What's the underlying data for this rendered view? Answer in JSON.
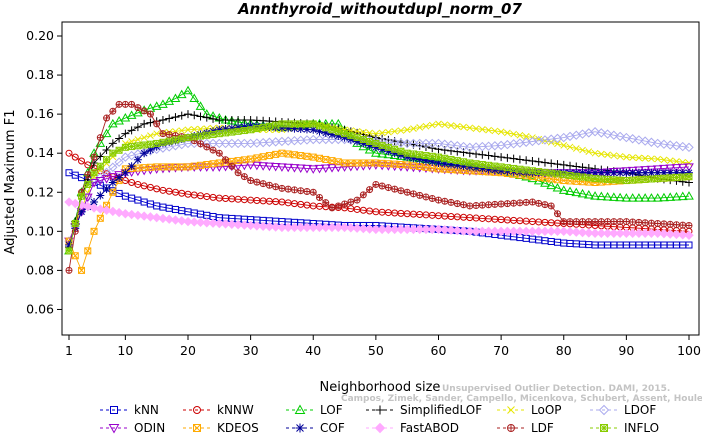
{
  "chart_data": {
    "type": "line",
    "title": "Annthyroid_withoutdupl_norm_07",
    "xlabel": "Neighborhood size",
    "ylabel": "Adjusted Maximum F1",
    "xlim": [
      1,
      100
    ],
    "ylim": [
      0.05,
      0.2
    ],
    "x_ticks": [
      1,
      10,
      20,
      30,
      40,
      50,
      60,
      70,
      80,
      90,
      100
    ],
    "y_ticks": [
      0.06,
      0.08,
      0.1,
      0.12,
      0.14,
      0.16,
      0.18,
      0.2
    ],
    "y_tick_labels": [
      "0.06",
      "0.08",
      "0.10",
      "0.12",
      "0.14",
      "0.16",
      "0.18",
      "0.20"
    ],
    "grid": false,
    "legend_position": "bottom",
    "series": [
      {
        "name": "kNN",
        "color": "#0000cc",
        "marker": "square",
        "points": [
          [
            1,
            0.13
          ],
          [
            5,
            0.125
          ],
          [
            10,
            0.118
          ],
          [
            15,
            0.113
          ],
          [
            20,
            0.11
          ],
          [
            25,
            0.107
          ],
          [
            30,
            0.106
          ],
          [
            35,
            0.105
          ],
          [
            40,
            0.104
          ],
          [
            45,
            0.103
          ],
          [
            50,
            0.103
          ],
          [
            55,
            0.102
          ],
          [
            60,
            0.101
          ],
          [
            65,
            0.1
          ],
          [
            70,
            0.098
          ],
          [
            75,
            0.096
          ],
          [
            80,
            0.094
          ],
          [
            85,
            0.093
          ],
          [
            90,
            0.093
          ],
          [
            95,
            0.093
          ],
          [
            100,
            0.093
          ]
        ]
      },
      {
        "name": "kNNW",
        "color": "#cc0000",
        "marker": "circle",
        "points": [
          [
            1,
            0.14
          ],
          [
            4,
            0.134
          ],
          [
            8,
            0.128
          ],
          [
            12,
            0.124
          ],
          [
            16,
            0.121
          ],
          [
            20,
            0.119
          ],
          [
            25,
            0.117
          ],
          [
            30,
            0.116
          ],
          [
            35,
            0.115
          ],
          [
            40,
            0.113
          ],
          [
            45,
            0.112
          ],
          [
            50,
            0.11
          ],
          [
            55,
            0.109
          ],
          [
            60,
            0.108
          ],
          [
            65,
            0.107
          ],
          [
            70,
            0.106
          ],
          [
            75,
            0.105
          ],
          [
            80,
            0.104
          ],
          [
            85,
            0.103
          ],
          [
            90,
            0.102
          ],
          [
            95,
            0.101
          ],
          [
            100,
            0.1
          ]
        ]
      },
      {
        "name": "LOF",
        "color": "#00cc00",
        "marker": "triangle-up",
        "points": [
          [
            1,
            0.09
          ],
          [
            3,
            0.12
          ],
          [
            5,
            0.14
          ],
          [
            8,
            0.155
          ],
          [
            10,
            0.158
          ],
          [
            13,
            0.162
          ],
          [
            16,
            0.165
          ],
          [
            18,
            0.168
          ],
          [
            20,
            0.172
          ],
          [
            23,
            0.16
          ],
          [
            26,
            0.157
          ],
          [
            30,
            0.155
          ],
          [
            35,
            0.153
          ],
          [
            40,
            0.155
          ],
          [
            44,
            0.155
          ],
          [
            47,
            0.145
          ],
          [
            50,
            0.14
          ],
          [
            55,
            0.138
          ],
          [
            60,
            0.136
          ],
          [
            65,
            0.134
          ],
          [
            70,
            0.131
          ],
          [
            75,
            0.127
          ],
          [
            80,
            0.121
          ],
          [
            85,
            0.118
          ],
          [
            90,
            0.117
          ],
          [
            95,
            0.117
          ],
          [
            100,
            0.118
          ]
        ]
      },
      {
        "name": "SimplifiedLOF",
        "color": "#000000",
        "marker": "plus",
        "points": [
          [
            1,
            0.092
          ],
          [
            3,
            0.118
          ],
          [
            5,
            0.135
          ],
          [
            8,
            0.145
          ],
          [
            10,
            0.15
          ],
          [
            13,
            0.155
          ],
          [
            16,
            0.157
          ],
          [
            20,
            0.16
          ],
          [
            25,
            0.157
          ],
          [
            30,
            0.157
          ],
          [
            35,
            0.156
          ],
          [
            40,
            0.155
          ],
          [
            45,
            0.152
          ],
          [
            50,
            0.148
          ],
          [
            55,
            0.145
          ],
          [
            60,
            0.142
          ],
          [
            65,
            0.14
          ],
          [
            70,
            0.138
          ],
          [
            75,
            0.136
          ],
          [
            80,
            0.134
          ],
          [
            85,
            0.132
          ],
          [
            90,
            0.13
          ],
          [
            95,
            0.127
          ],
          [
            100,
            0.125
          ]
        ]
      },
      {
        "name": "LoOP",
        "color": "#e6e600",
        "marker": "cross",
        "points": [
          [
            1,
            0.095
          ],
          [
            5,
            0.128
          ],
          [
            10,
            0.145
          ],
          [
            15,
            0.15
          ],
          [
            20,
            0.152
          ],
          [
            25,
            0.153
          ],
          [
            30,
            0.152
          ],
          [
            35,
            0.152
          ],
          [
            40,
            0.155
          ],
          [
            45,
            0.152
          ],
          [
            50,
            0.15
          ],
          [
            55,
            0.152
          ],
          [
            60,
            0.155
          ],
          [
            65,
            0.153
          ],
          [
            70,
            0.151
          ],
          [
            75,
            0.148
          ],
          [
            80,
            0.144
          ],
          [
            85,
            0.14
          ],
          [
            90,
            0.138
          ],
          [
            95,
            0.137
          ],
          [
            100,
            0.135
          ]
        ]
      },
      {
        "name": "LDOF",
        "color": "#aaaaee",
        "marker": "diamond",
        "points": [
          [
            1,
            0.095
          ],
          [
            5,
            0.125
          ],
          [
            10,
            0.138
          ],
          [
            15,
            0.142
          ],
          [
            20,
            0.145
          ],
          [
            25,
            0.145
          ],
          [
            30,
            0.145
          ],
          [
            35,
            0.146
          ],
          [
            40,
            0.147
          ],
          [
            45,
            0.147
          ],
          [
            50,
            0.146
          ],
          [
            55,
            0.145
          ],
          [
            60,
            0.145
          ],
          [
            65,
            0.143
          ],
          [
            70,
            0.144
          ],
          [
            75,
            0.146
          ],
          [
            80,
            0.148
          ],
          [
            85,
            0.151
          ],
          [
            90,
            0.148
          ],
          [
            95,
            0.145
          ],
          [
            100,
            0.143
          ]
        ]
      },
      {
        "name": "ODIN",
        "color": "#9900cc",
        "marker": "triangle-down",
        "points": [
          [
            1,
            0.095
          ],
          [
            5,
            0.125
          ],
          [
            10,
            0.13
          ],
          [
            15,
            0.132
          ],
          [
            20,
            0.133
          ],
          [
            25,
            0.133
          ],
          [
            30,
            0.134
          ],
          [
            35,
            0.133
          ],
          [
            40,
            0.132
          ],
          [
            45,
            0.133
          ],
          [
            50,
            0.134
          ],
          [
            55,
            0.133
          ],
          [
            60,
            0.132
          ],
          [
            65,
            0.131
          ],
          [
            70,
            0.131
          ],
          [
            75,
            0.13
          ],
          [
            80,
            0.13
          ],
          [
            85,
            0.13
          ],
          [
            90,
            0.131
          ],
          [
            95,
            0.132
          ],
          [
            100,
            0.133
          ]
        ]
      },
      {
        "name": "KDEOS",
        "color": "#ffaa00",
        "marker": "square-x",
        "points": [
          [
            1,
            0.095
          ],
          [
            3,
            0.08
          ],
          [
            5,
            0.1
          ],
          [
            8,
            0.12
          ],
          [
            10,
            0.132
          ],
          [
            15,
            0.133
          ],
          [
            20,
            0.133
          ],
          [
            25,
            0.135
          ],
          [
            30,
            0.137
          ],
          [
            35,
            0.14
          ],
          [
            40,
            0.138
          ],
          [
            45,
            0.135
          ],
          [
            50,
            0.135
          ],
          [
            55,
            0.134
          ],
          [
            60,
            0.132
          ],
          [
            65,
            0.131
          ],
          [
            70,
            0.13
          ],
          [
            75,
            0.128
          ],
          [
            80,
            0.126
          ],
          [
            85,
            0.125
          ],
          [
            90,
            0.126
          ],
          [
            95,
            0.127
          ],
          [
            100,
            0.128
          ]
        ]
      },
      {
        "name": "COF",
        "color": "#000099",
        "marker": "asterisk",
        "points": [
          [
            1,
            0.093
          ],
          [
            3,
            0.11
          ],
          [
            5,
            0.115
          ],
          [
            8,
            0.125
          ],
          [
            10,
            0.13
          ],
          [
            13,
            0.14
          ],
          [
            16,
            0.145
          ],
          [
            20,
            0.148
          ],
          [
            25,
            0.152
          ],
          [
            30,
            0.154
          ],
          [
            35,
            0.153
          ],
          [
            40,
            0.152
          ],
          [
            45,
            0.148
          ],
          [
            50,
            0.143
          ],
          [
            55,
            0.138
          ],
          [
            60,
            0.135
          ],
          [
            65,
            0.133
          ],
          [
            70,
            0.131
          ],
          [
            75,
            0.13
          ],
          [
            80,
            0.13
          ],
          [
            85,
            0.13
          ],
          [
            90,
            0.13
          ],
          [
            95,
            0.13
          ],
          [
            100,
            0.13
          ]
        ]
      },
      {
        "name": "FastABOD",
        "color": "#ffaaff",
        "marker": "diamond-filled",
        "points": [
          [
            1,
            0.115
          ],
          [
            5,
            0.112
          ],
          [
            10,
            0.109
          ],
          [
            15,
            0.107
          ],
          [
            20,
            0.105
          ],
          [
            25,
            0.104
          ],
          [
            30,
            0.103
          ],
          [
            35,
            0.102
          ],
          [
            40,
            0.102
          ],
          [
            45,
            0.102
          ],
          [
            50,
            0.101
          ],
          [
            55,
            0.101
          ],
          [
            60,
            0.101
          ],
          [
            65,
            0.1
          ],
          [
            70,
            0.1
          ],
          [
            75,
            0.1
          ],
          [
            80,
            0.1
          ],
          [
            85,
            0.099
          ],
          [
            90,
            0.099
          ],
          [
            95,
            0.099
          ],
          [
            100,
            0.098
          ]
        ]
      },
      {
        "name": "LDF",
        "color": "#aa2222",
        "marker": "circle-plus",
        "points": [
          [
            1,
            0.08
          ],
          [
            3,
            0.12
          ],
          [
            5,
            0.138
          ],
          [
            7,
            0.158
          ],
          [
            9,
            0.165
          ],
          [
            11,
            0.165
          ],
          [
            14,
            0.16
          ],
          [
            16,
            0.15
          ],
          [
            20,
            0.148
          ],
          [
            25,
            0.14
          ],
          [
            28,
            0.13
          ],
          [
            30,
            0.126
          ],
          [
            35,
            0.122
          ],
          [
            40,
            0.12
          ],
          [
            43,
            0.112
          ],
          [
            47,
            0.116
          ],
          [
            50,
            0.124
          ],
          [
            55,
            0.12
          ],
          [
            60,
            0.116
          ],
          [
            65,
            0.113
          ],
          [
            70,
            0.114
          ],
          [
            75,
            0.115
          ],
          [
            78,
            0.113
          ],
          [
            80,
            0.105
          ],
          [
            85,
            0.105
          ],
          [
            90,
            0.105
          ],
          [
            95,
            0.104
          ],
          [
            100,
            0.103
          ]
        ]
      },
      {
        "name": "INFLO",
        "color": "#88cc00",
        "marker": "square-star",
        "points": [
          [
            1,
            0.09
          ],
          [
            3,
            0.118
          ],
          [
            5,
            0.13
          ],
          [
            8,
            0.14
          ],
          [
            10,
            0.143
          ],
          [
            15,
            0.145
          ],
          [
            20,
            0.148
          ],
          [
            25,
            0.15
          ],
          [
            30,
            0.152
          ],
          [
            35,
            0.155
          ],
          [
            40,
            0.155
          ],
          [
            45,
            0.15
          ],
          [
            50,
            0.145
          ],
          [
            55,
            0.14
          ],
          [
            60,
            0.138
          ],
          [
            65,
            0.135
          ],
          [
            70,
            0.133
          ],
          [
            75,
            0.131
          ],
          [
            80,
            0.129
          ],
          [
            85,
            0.127
          ],
          [
            90,
            0.126
          ],
          [
            95,
            0.127
          ],
          [
            100,
            0.128
          ]
        ]
      }
    ]
  },
  "watermark": {
    "line1": "Unsupervised Outlier Detection. DAMI, 2015.",
    "line2": "Campos, Zimek, Sander, Campello, Micenkova, Schubert, Assent, Houle"
  }
}
